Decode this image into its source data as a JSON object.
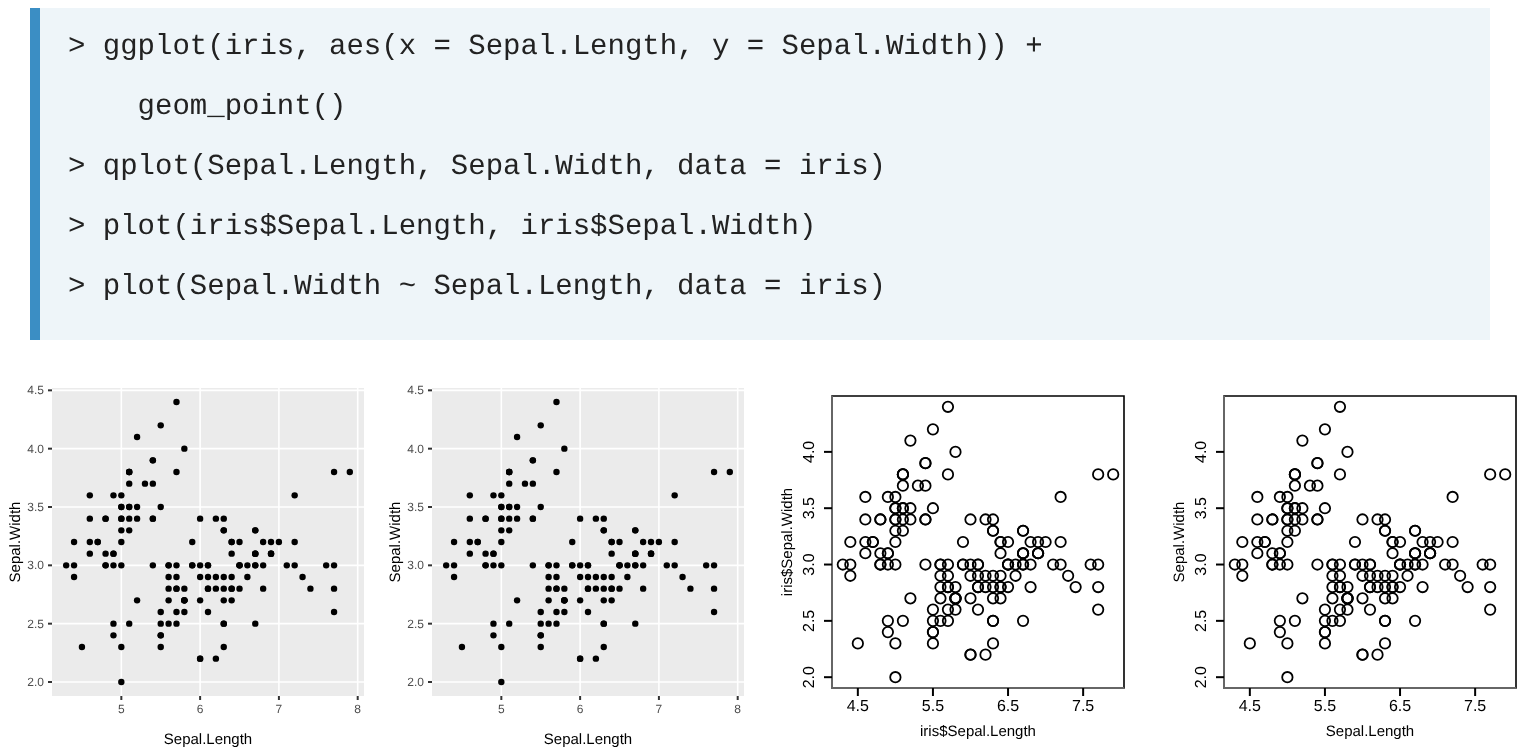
{
  "chart_data": [
    {
      "type": "other",
      "annotations": [
        "> ggplot(iris, aes(x = Sepal.Length, y = Sepal.Width)) +",
        "    geom_point()",
        "> qplot(Sepal.Length, Sepal.Width, data = iris)",
        "> plot(iris$Sepal.Length, iris$Sepal.Width)",
        "> plot(Sepal.Width ~ Sepal.Length, data = iris)"
      ]
    },
    {
      "type": "scatter",
      "xlabel": "Sepal.Length",
      "ylabel": "Sepal.Width",
      "color": "#000000",
      "marker": "circle",
      "grid": true,
      "xlim": [
        4.12,
        8.08
      ],
      "ylim": [
        1.88,
        4.52
      ],
      "xticks": [
        5,
        6,
        7,
        8
      ],
      "yticks": [
        {
          "value": 2,
          "label": "2.0"
        },
        2.5,
        {
          "value": 3,
          "label": "3.0"
        },
        3.5,
        {
          "value": 4,
          "label": "4.0"
        },
        4.5
      ],
      "x": [
        5.1,
        4.9,
        4.7,
        4.6,
        5.0,
        5.4,
        4.6,
        5.0,
        4.4,
        4.9,
        5.4,
        4.8,
        4.8,
        4.3,
        5.8,
        5.7,
        5.4,
        5.1,
        5.7,
        5.1,
        5.4,
        5.1,
        4.6,
        5.1,
        4.8,
        5.0,
        5.0,
        5.2,
        5.2,
        4.7,
        4.8,
        5.4,
        5.2,
        5.5,
        4.9,
        5.0,
        5.5,
        4.9,
        4.4,
        5.1,
        5.0,
        4.5,
        4.4,
        5.0,
        5.1,
        4.8,
        5.1,
        4.6,
        5.3,
        5.0,
        7.0,
        6.4,
        6.9,
        5.5,
        6.5,
        5.7,
        6.3,
        4.9,
        6.6,
        5.2,
        5.0,
        5.9,
        6.0,
        6.1,
        5.6,
        6.7,
        5.6,
        5.8,
        6.2,
        5.6,
        5.9,
        6.1,
        6.3,
        6.1,
        6.4,
        6.6,
        6.8,
        6.7,
        6.0,
        5.7,
        5.5,
        5.5,
        5.8,
        6.0,
        5.4,
        6.0,
        6.7,
        6.3,
        5.6,
        5.5,
        5.5,
        6.1,
        5.8,
        5.0,
        5.6,
        5.7,
        5.7,
        6.2,
        5.1,
        5.7,
        6.3,
        5.8,
        7.1,
        6.3,
        6.5,
        7.6,
        4.9,
        7.3,
        6.7,
        7.2,
        6.5,
        6.4,
        6.8,
        5.7,
        5.8,
        6.4,
        6.5,
        7.7,
        7.7,
        6.0,
        6.9,
        5.6,
        7.7,
        6.3,
        6.7,
        7.2,
        6.2,
        6.1,
        6.4,
        7.2,
        7.4,
        7.9,
        6.4,
        6.3,
        6.1,
        7.7,
        6.3,
        6.4,
        6.0,
        6.9,
        6.7,
        6.9,
        5.8,
        6.8,
        6.7,
        6.7,
        6.3,
        6.5,
        6.2,
        5.9
      ],
      "values": [
        3.5,
        3.0,
        3.2,
        3.1,
        3.6,
        3.9,
        3.4,
        3.4,
        2.9,
        3.1,
        3.7,
        3.4,
        3.0,
        3.0,
        4.0,
        4.4,
        3.9,
        3.5,
        3.8,
        3.8,
        3.4,
        3.7,
        3.6,
        3.3,
        3.4,
        3.0,
        3.4,
        3.5,
        3.4,
        3.2,
        3.1,
        3.4,
        4.1,
        4.2,
        3.1,
        3.2,
        3.5,
        3.6,
        3.0,
        3.4,
        3.5,
        2.3,
        3.2,
        3.5,
        3.8,
        3.0,
        3.8,
        3.2,
        3.7,
        3.3,
        3.2,
        3.2,
        3.1,
        2.3,
        2.8,
        2.8,
        3.3,
        2.4,
        2.9,
        2.7,
        2.0,
        3.0,
        2.2,
        2.9,
        2.9,
        3.1,
        3.0,
        2.7,
        2.2,
        2.5,
        3.2,
        2.8,
        2.5,
        2.8,
        2.9,
        3.0,
        2.8,
        3.0,
        2.9,
        2.6,
        2.4,
        2.4,
        2.7,
        2.7,
        3.0,
        3.4,
        3.1,
        2.3,
        3.0,
        2.5,
        2.6,
        3.0,
        2.6,
        2.3,
        2.7,
        3.0,
        2.9,
        2.9,
        2.5,
        2.8,
        3.3,
        2.7,
        3.0,
        2.9,
        3.0,
        3.0,
        2.5,
        2.9,
        2.5,
        3.6,
        3.2,
        2.7,
        3.0,
        2.5,
        2.8,
        3.2,
        3.0,
        3.8,
        2.6,
        2.2,
        3.2,
        2.8,
        2.8,
        2.7,
        3.3,
        3.2,
        2.8,
        3.0,
        2.8,
        3.0,
        2.8,
        3.8,
        2.8,
        2.8,
        2.6,
        3.0,
        3.4,
        3.1,
        3.0,
        3.1,
        3.1,
        3.1,
        2.7,
        3.2,
        3.3,
        3.0,
        2.5,
        3.0,
        3.4,
        3.0
      ]
    },
    {
      "type": "scatter",
      "xlabel": "Sepal.Length",
      "ylabel": "Sepal.Width",
      "color": "#000000",
      "marker": "circle",
      "grid": true,
      "xlim": [
        4.12,
        8.08
      ],
      "ylim": [
        1.88,
        4.52
      ],
      "xticks": [
        5,
        6,
        7,
        8
      ],
      "yticks": [
        {
          "value": 2,
          "label": "2.0"
        },
        2.5,
        {
          "value": 3,
          "label": "3.0"
        },
        3.5,
        {
          "value": 4,
          "label": "4.0"
        },
        4.5
      ],
      "x": [
        5.1,
        4.9,
        4.7,
        4.6,
        5.0,
        5.4,
        4.6,
        5.0,
        4.4,
        4.9,
        5.4,
        4.8,
        4.8,
        4.3,
        5.8,
        5.7,
        5.4,
        5.1,
        5.7,
        5.1,
        5.4,
        5.1,
        4.6,
        5.1,
        4.8,
        5.0,
        5.0,
        5.2,
        5.2,
        4.7,
        4.8,
        5.4,
        5.2,
        5.5,
        4.9,
        5.0,
        5.5,
        4.9,
        4.4,
        5.1,
        5.0,
        4.5,
        4.4,
        5.0,
        5.1,
        4.8,
        5.1,
        4.6,
        5.3,
        5.0,
        7.0,
        6.4,
        6.9,
        5.5,
        6.5,
        5.7,
        6.3,
        4.9,
        6.6,
        5.2,
        5.0,
        5.9,
        6.0,
        6.1,
        5.6,
        6.7,
        5.6,
        5.8,
        6.2,
        5.6,
        5.9,
        6.1,
        6.3,
        6.1,
        6.4,
        6.6,
        6.8,
        6.7,
        6.0,
        5.7,
        5.5,
        5.5,
        5.8,
        6.0,
        5.4,
        6.0,
        6.7,
        6.3,
        5.6,
        5.5,
        5.5,
        6.1,
        5.8,
        5.0,
        5.6,
        5.7,
        5.7,
        6.2,
        5.1,
        5.7,
        6.3,
        5.8,
        7.1,
        6.3,
        6.5,
        7.6,
        4.9,
        7.3,
        6.7,
        7.2,
        6.5,
        6.4,
        6.8,
        5.7,
        5.8,
        6.4,
        6.5,
        7.7,
        7.7,
        6.0,
        6.9,
        5.6,
        7.7,
        6.3,
        6.7,
        7.2,
        6.2,
        6.1,
        6.4,
        7.2,
        7.4,
        7.9,
        6.4,
        6.3,
        6.1,
        7.7,
        6.3,
        6.4,
        6.0,
        6.9,
        6.7,
        6.9,
        5.8,
        6.8,
        6.7,
        6.7,
        6.3,
        6.5,
        6.2,
        5.9
      ],
      "values": [
        3.5,
        3.0,
        3.2,
        3.1,
        3.6,
        3.9,
        3.4,
        3.4,
        2.9,
        3.1,
        3.7,
        3.4,
        3.0,
        3.0,
        4.0,
        4.4,
        3.9,
        3.5,
        3.8,
        3.8,
        3.4,
        3.7,
        3.6,
        3.3,
        3.4,
        3.0,
        3.4,
        3.5,
        3.4,
        3.2,
        3.1,
        3.4,
        4.1,
        4.2,
        3.1,
        3.2,
        3.5,
        3.6,
        3.0,
        3.4,
        3.5,
        2.3,
        3.2,
        3.5,
        3.8,
        3.0,
        3.8,
        3.2,
        3.7,
        3.3,
        3.2,
        3.2,
        3.1,
        2.3,
        2.8,
        2.8,
        3.3,
        2.4,
        2.9,
        2.7,
        2.0,
        3.0,
        2.2,
        2.9,
        2.9,
        3.1,
        3.0,
        2.7,
        2.2,
        2.5,
        3.2,
        2.8,
        2.5,
        2.8,
        2.9,
        3.0,
        2.8,
        3.0,
        2.9,
        2.6,
        2.4,
        2.4,
        2.7,
        2.7,
        3.0,
        3.4,
        3.1,
        2.3,
        3.0,
        2.5,
        2.6,
        3.0,
        2.6,
        2.3,
        2.7,
        3.0,
        2.9,
        2.9,
        2.5,
        2.8,
        3.3,
        2.7,
        3.0,
        2.9,
        3.0,
        3.0,
        2.5,
        2.9,
        2.5,
        3.6,
        3.2,
        2.7,
        3.0,
        2.5,
        2.8,
        3.2,
        3.0,
        3.8,
        2.6,
        2.2,
        3.2,
        2.8,
        2.8,
        2.7,
        3.3,
        3.2,
        2.8,
        3.0,
        2.8,
        3.0,
        2.8,
        3.8,
        2.8,
        2.8,
        2.6,
        3.0,
        3.4,
        3.1,
        3.0,
        3.1,
        3.1,
        3.1,
        2.7,
        3.2,
        3.3,
        3.0,
        2.5,
        3.0,
        3.4,
        3.0
      ]
    },
    {
      "type": "scatter",
      "xlabel": "iris$Sepal.Length",
      "ylabel": "iris$Sepal.Width",
      "color": "#000000",
      "marker": "circle",
      "xlim": [
        4.156,
        8.044
      ],
      "ylim": [
        1.904,
        4.496
      ],
      "xticks": [
        4.5,
        5.5,
        6.5,
        7.5
      ],
      "yticks": [
        {
          "value": 2,
          "label": "2.0"
        },
        2.5,
        {
          "value": 3,
          "label": "3.0"
        },
        3.5,
        {
          "value": 4,
          "label": "4.0"
        }
      ],
      "x": [
        5.1,
        4.9,
        4.7,
        4.6,
        5.0,
        5.4,
        4.6,
        5.0,
        4.4,
        4.9,
        5.4,
        4.8,
        4.8,
        4.3,
        5.8,
        5.7,
        5.4,
        5.1,
        5.7,
        5.1,
        5.4,
        5.1,
        4.6,
        5.1,
        4.8,
        5.0,
        5.0,
        5.2,
        5.2,
        4.7,
        4.8,
        5.4,
        5.2,
        5.5,
        4.9,
        5.0,
        5.5,
        4.9,
        4.4,
        5.1,
        5.0,
        4.5,
        4.4,
        5.0,
        5.1,
        4.8,
        5.1,
        4.6,
        5.3,
        5.0,
        7.0,
        6.4,
        6.9,
        5.5,
        6.5,
        5.7,
        6.3,
        4.9,
        6.6,
        5.2,
        5.0,
        5.9,
        6.0,
        6.1,
        5.6,
        6.7,
        5.6,
        5.8,
        6.2,
        5.6,
        5.9,
        6.1,
        6.3,
        6.1,
        6.4,
        6.6,
        6.8,
        6.7,
        6.0,
        5.7,
        5.5,
        5.5,
        5.8,
        6.0,
        5.4,
        6.0,
        6.7,
        6.3,
        5.6,
        5.5,
        5.5,
        6.1,
        5.8,
        5.0,
        5.6,
        5.7,
        5.7,
        6.2,
        5.1,
        5.7,
        6.3,
        5.8,
        7.1,
        6.3,
        6.5,
        7.6,
        4.9,
        7.3,
        6.7,
        7.2,
        6.5,
        6.4,
        6.8,
        5.7,
        5.8,
        6.4,
        6.5,
        7.7,
        7.7,
        6.0,
        6.9,
        5.6,
        7.7,
        6.3,
        6.7,
        7.2,
        6.2,
        6.1,
        6.4,
        7.2,
        7.4,
        7.9,
        6.4,
        6.3,
        6.1,
        7.7,
        6.3,
        6.4,
        6.0,
        6.9,
        6.7,
        6.9,
        5.8,
        6.8,
        6.7,
        6.7,
        6.3,
        6.5,
        6.2,
        5.9
      ],
      "values": [
        3.5,
        3.0,
        3.2,
        3.1,
        3.6,
        3.9,
        3.4,
        3.4,
        2.9,
        3.1,
        3.7,
        3.4,
        3.0,
        3.0,
        4.0,
        4.4,
        3.9,
        3.5,
        3.8,
        3.8,
        3.4,
        3.7,
        3.6,
        3.3,
        3.4,
        3.0,
        3.4,
        3.5,
        3.4,
        3.2,
        3.1,
        3.4,
        4.1,
        4.2,
        3.1,
        3.2,
        3.5,
        3.6,
        3.0,
        3.4,
        3.5,
        2.3,
        3.2,
        3.5,
        3.8,
        3.0,
        3.8,
        3.2,
        3.7,
        3.3,
        3.2,
        3.2,
        3.1,
        2.3,
        2.8,
        2.8,
        3.3,
        2.4,
        2.9,
        2.7,
        2.0,
        3.0,
        2.2,
        2.9,
        2.9,
        3.1,
        3.0,
        2.7,
        2.2,
        2.5,
        3.2,
        2.8,
        2.5,
        2.8,
        2.9,
        3.0,
        2.8,
        3.0,
        2.9,
        2.6,
        2.4,
        2.4,
        2.7,
        2.7,
        3.0,
        3.4,
        3.1,
        2.3,
        3.0,
        2.5,
        2.6,
        3.0,
        2.6,
        2.3,
        2.7,
        3.0,
        2.9,
        2.9,
        2.5,
        2.8,
        3.3,
        2.7,
        3.0,
        2.9,
        3.0,
        3.0,
        2.5,
        2.9,
        2.5,
        3.6,
        3.2,
        2.7,
        3.0,
        2.5,
        2.8,
        3.2,
        3.0,
        3.8,
        2.6,
        2.2,
        3.2,
        2.8,
        2.8,
        2.7,
        3.3,
        3.2,
        2.8,
        3.0,
        2.8,
        3.0,
        2.8,
        3.8,
        2.8,
        2.8,
        2.6,
        3.0,
        3.4,
        3.1,
        3.0,
        3.1,
        3.1,
        3.1,
        2.7,
        3.2,
        3.3,
        3.0,
        2.5,
        3.0,
        3.4,
        3.0
      ]
    },
    {
      "type": "scatter",
      "xlabel": "Sepal.Length",
      "ylabel": "Sepal.Width",
      "color": "#000000",
      "marker": "circle",
      "xlim": [
        4.156,
        8.044
      ],
      "ylim": [
        1.904,
        4.496
      ],
      "xticks": [
        4.5,
        5.5,
        6.5,
        7.5
      ],
      "yticks": [
        {
          "value": 2,
          "label": "2.0"
        },
        2.5,
        {
          "value": 3,
          "label": "3.0"
        },
        3.5,
        {
          "value": 4,
          "label": "4.0"
        }
      ],
      "x": [
        5.1,
        4.9,
        4.7,
        4.6,
        5.0,
        5.4,
        4.6,
        5.0,
        4.4,
        4.9,
        5.4,
        4.8,
        4.8,
        4.3,
        5.8,
        5.7,
        5.4,
        5.1,
        5.7,
        5.1,
        5.4,
        5.1,
        4.6,
        5.1,
        4.8,
        5.0,
        5.0,
        5.2,
        5.2,
        4.7,
        4.8,
        5.4,
        5.2,
        5.5,
        4.9,
        5.0,
        5.5,
        4.9,
        4.4,
        5.1,
        5.0,
        4.5,
        4.4,
        5.0,
        5.1,
        4.8,
        5.1,
        4.6,
        5.3,
        5.0,
        7.0,
        6.4,
        6.9,
        5.5,
        6.5,
        5.7,
        6.3,
        4.9,
        6.6,
        5.2,
        5.0,
        5.9,
        6.0,
        6.1,
        5.6,
        6.7,
        5.6,
        5.8,
        6.2,
        5.6,
        5.9,
        6.1,
        6.3,
        6.1,
        6.4,
        6.6,
        6.8,
        6.7,
        6.0,
        5.7,
        5.5,
        5.5,
        5.8,
        6.0,
        5.4,
        6.0,
        6.7,
        6.3,
        5.6,
        5.5,
        5.5,
        6.1,
        5.8,
        5.0,
        5.6,
        5.7,
        5.7,
        6.2,
        5.1,
        5.7,
        6.3,
        5.8,
        7.1,
        6.3,
        6.5,
        7.6,
        4.9,
        7.3,
        6.7,
        7.2,
        6.5,
        6.4,
        6.8,
        5.7,
        5.8,
        6.4,
        6.5,
        7.7,
        7.7,
        6.0,
        6.9,
        5.6,
        7.7,
        6.3,
        6.7,
        7.2,
        6.2,
        6.1,
        6.4,
        7.2,
        7.4,
        7.9,
        6.4,
        6.3,
        6.1,
        7.7,
        6.3,
        6.4,
        6.0,
        6.9,
        6.7,
        6.9,
        5.8,
        6.8,
        6.7,
        6.7,
        6.3,
        6.5,
        6.2,
        5.9
      ],
      "values": [
        3.5,
        3.0,
        3.2,
        3.1,
        3.6,
        3.9,
        3.4,
        3.4,
        2.9,
        3.1,
        3.7,
        3.4,
        3.0,
        3.0,
        4.0,
        4.4,
        3.9,
        3.5,
        3.8,
        3.8,
        3.4,
        3.7,
        3.6,
        3.3,
        3.4,
        3.0,
        3.4,
        3.5,
        3.4,
        3.2,
        3.1,
        3.4,
        4.1,
        4.2,
        3.1,
        3.2,
        3.5,
        3.6,
        3.0,
        3.4,
        3.5,
        2.3,
        3.2,
        3.5,
        3.8,
        3.0,
        3.8,
        3.2,
        3.7,
        3.3,
        3.2,
        3.2,
        3.1,
        2.3,
        2.8,
        2.8,
        3.3,
        2.4,
        2.9,
        2.7,
        2.0,
        3.0,
        2.2,
        2.9,
        2.9,
        3.1,
        3.0,
        2.7,
        2.2,
        2.5,
        3.2,
        2.8,
        2.5,
        2.8,
        2.9,
        3.0,
        2.8,
        3.0,
        2.9,
        2.6,
        2.4,
        2.4,
        2.7,
        2.7,
        3.0,
        3.4,
        3.1,
        2.3,
        3.0,
        2.5,
        2.6,
        3.0,
        2.6,
        2.3,
        2.7,
        3.0,
        2.9,
        2.9,
        2.5,
        2.8,
        3.3,
        2.7,
        3.0,
        2.9,
        3.0,
        3.0,
        2.5,
        2.9,
        2.5,
        3.6,
        3.2,
        2.7,
        3.0,
        2.5,
        2.8,
        3.2,
        3.0,
        3.8,
        2.6,
        2.2,
        3.2,
        2.8,
        2.8,
        2.7,
        3.3,
        3.2,
        2.8,
        3.0,
        2.8,
        3.0,
        2.8,
        3.8,
        2.8,
        2.8,
        2.6,
        3.0,
        3.4,
        3.1,
        3.0,
        3.1,
        3.1,
        3.1,
        2.7,
        3.2,
        3.3,
        3.0,
        2.5,
        3.0,
        3.4,
        3.0
      ]
    }
  ]
}
